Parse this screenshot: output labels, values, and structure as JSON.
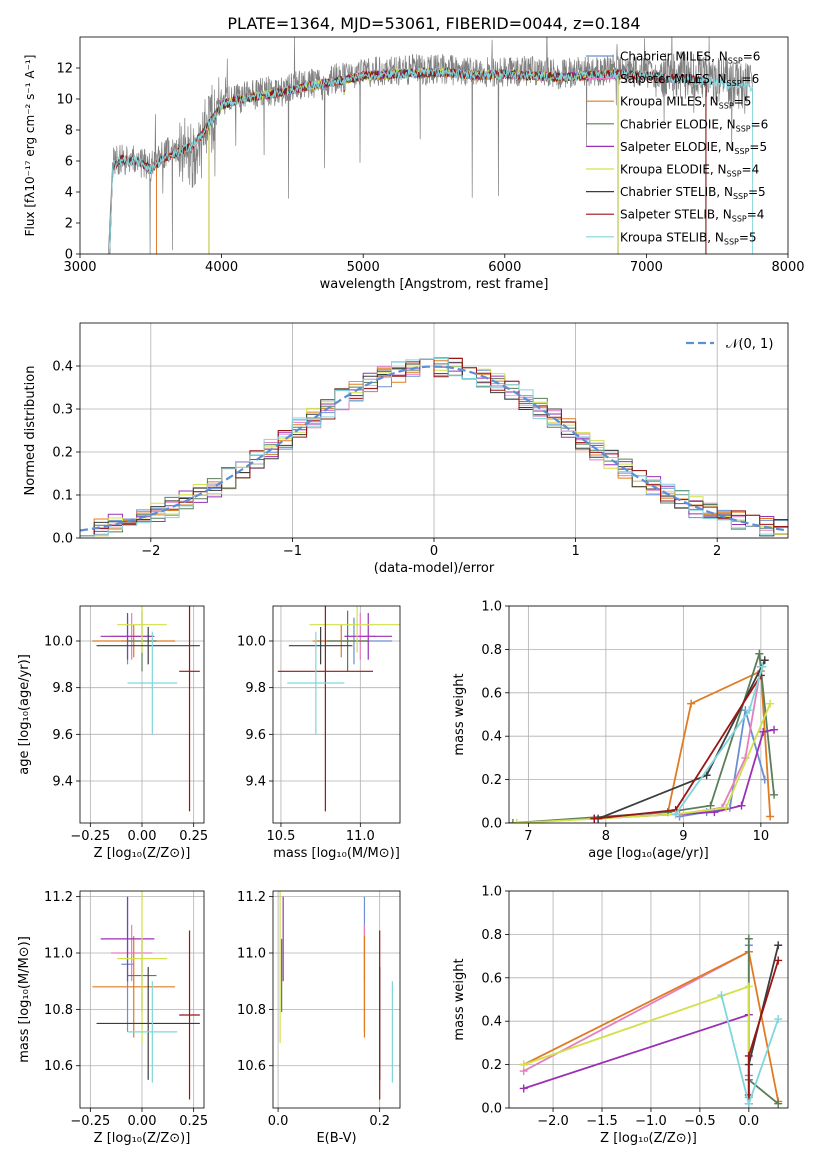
{
  "figure": {
    "title": "PLATE=1364, MJD=53061, FIBERID=0044, z=0.184"
  },
  "colors": {
    "Chabrier MILES": "#6c8fd3",
    "Salpeter MILES": "#e57ec0",
    "Kroupa MILES": "#e07b21",
    "Chabrier ELODIE": "#5a7e5a",
    "Salpeter ELODIE": "#9b30b5",
    "Kroupa ELODIE": "#d2e04a",
    "Chabrier STELIB": "#3c3c3c",
    "Salpeter STELIB": "#9c1515",
    "Kroupa STELIB": "#7fd6dc",
    "data": "#808080",
    "gaussian": "#5b8fd6"
  },
  "chart_data": [
    {
      "id": "spectrum",
      "type": "line",
      "title": "PLATE=1364, MJD=53061, FIBERID=0044, z=0.184",
      "xlabel": "wavelength [Angstrom, rest frame]",
      "ylabel": "Flux [fλ10⁻¹⁷ erg cm⁻² s⁻¹ A⁻¹]",
      "xlim": [
        3000,
        8000
      ],
      "ylim": [
        0,
        14
      ],
      "xticks": [
        3000,
        4000,
        5000,
        6000,
        7000,
        8000
      ],
      "yticks": [
        0,
        2,
        4,
        6,
        8,
        10,
        12
      ],
      "grid": false,
      "legend_position": "top-right",
      "data_x": [
        3200,
        3230,
        3300,
        3400,
        3500,
        3600,
        3700,
        3800,
        3850,
        3900,
        3950,
        4000,
        4100,
        4200,
        4300,
        4400,
        4500,
        4600,
        4700,
        4800,
        4900,
        5000,
        5200,
        5400,
        5600,
        5800,
        6000,
        6200,
        6400,
        6600,
        6800,
        7000,
        7200,
        7400,
        7600,
        7750
      ],
      "data_y": [
        0,
        5.9,
        6.1,
        6.0,
        5.6,
        6.5,
        6.8,
        6.3,
        7.6,
        8.0,
        9.1,
        9.7,
        10.0,
        10.2,
        10.5,
        10.4,
        10.8,
        11.0,
        10.9,
        11.3,
        11.4,
        11.7,
        11.8,
        11.9,
        11.9,
        11.7,
        11.8,
        11.8,
        11.6,
        11.8,
        11.9,
        11.7,
        11.6,
        11.5,
        11.0,
        10.8
      ],
      "model_x": [
        3200,
        3230,
        3300,
        3400,
        3500,
        3600,
        3700,
        3800,
        3900,
        4000,
        4100,
        4200,
        4400,
        4600,
        4800,
        5000,
        5200,
        5400,
        5600,
        5800,
        6000,
        6200,
        6400,
        6600,
        6800,
        7000,
        7200,
        7400,
        7600,
        7750
      ],
      "model_y": [
        0,
        5.8,
        6.1,
        6.0,
        5.5,
        6.2,
        6.6,
        7.0,
        8.2,
        9.6,
        9.9,
        10.1,
        10.4,
        10.8,
        11.1,
        11.5,
        11.6,
        11.7,
        11.7,
        11.5,
        11.6,
        11.5,
        11.4,
        11.5,
        11.6,
        11.5,
        11.3,
        11.2,
        10.9,
        10.7
      ],
      "series": [
        {
          "name": "Chabrier MILES, N_SSP=6",
          "label": "Chabrier MILES",
          "nssp": "6",
          "x_range": [
            3540,
            6800
          ]
        },
        {
          "name": "Salpeter MILES, N_SSP=6",
          "label": "Salpeter MILES",
          "nssp": "6",
          "x_range": [
            3540,
            7420
          ]
        },
        {
          "name": "Kroupa MILES, N_SSP=5",
          "label": "Kroupa MILES",
          "nssp": "5",
          "x_range": [
            3540,
            7420
          ]
        },
        {
          "name": "Chabrier ELODIE, N_SSP=6",
          "label": "Chabrier ELODIE",
          "nssp": "6",
          "x_range": [
            3910,
            6800
          ]
        },
        {
          "name": "Salpeter ELODIE, N_SSP=5",
          "label": "Salpeter ELODIE",
          "nssp": "5",
          "x_range": [
            3910,
            6800
          ]
        },
        {
          "name": "Kroupa ELODIE, N_SSP=4",
          "label": "Kroupa ELODIE",
          "nssp": "4",
          "x_range": [
            3910,
            6800
          ]
        },
        {
          "name": "Chabrier STELIB, N_SSP=5",
          "label": "Chabrier STELIB",
          "nssp": "5",
          "x_range": [
            3210,
            7420
          ]
        },
        {
          "name": "Salpeter STELIB, N_SSP=4",
          "label": "Salpeter STELIB",
          "nssp": "4",
          "x_range": [
            3210,
            7420
          ]
        },
        {
          "name": "Kroupa STELIB, N_SSP=5",
          "label": "Kroupa STELIB",
          "nssp": "5",
          "x_range": [
            3210,
            7750
          ]
        }
      ]
    },
    {
      "id": "residuals",
      "type": "line",
      "xlabel": "(data-model)/error",
      "ylabel": "Normed distribution",
      "xlim": [
        -2.5,
        2.5
      ],
      "ylim": [
        0,
        0.5
      ],
      "xticks": [
        -2,
        -1,
        0,
        1,
        2
      ],
      "yticks": [
        0.0,
        0.1,
        0.2,
        0.3,
        0.4
      ],
      "grid": true,
      "legend_position": "top-right",
      "gaussian_label": "𝒩(0, 1)",
      "bin_width": 0.1
    },
    {
      "id": "age_vs_Z",
      "type": "scatter",
      "xlabel": "Z [log₁₀(Z/Z⊙)]",
      "ylabel": "age  [log₁₀(age/yr)]",
      "xlim": [
        -0.3,
        0.3
      ],
      "ylim": [
        9.22,
        10.15
      ],
      "xticks": [
        -0.25,
        0.0,
        0.25
      ],
      "yticks": [
        9.4,
        9.6,
        9.8,
        10.0
      ],
      "grid": true
    },
    {
      "id": "age_vs_mass",
      "type": "scatter",
      "xlabel": "mass [log₁₀(M/M⊙)]",
      "xlim": [
        10.45,
        11.25
      ],
      "ylim": [
        9.22,
        10.15
      ],
      "xticks": [
        10.5,
        11.0
      ],
      "yticks": [
        9.4,
        9.6,
        9.8,
        10.0
      ],
      "grid": true
    },
    {
      "id": "weight_vs_age",
      "type": "line",
      "xlabel": "age  [log₁₀(age/yr)]",
      "ylabel": "mass weight",
      "xlim": [
        6.75,
        10.35
      ],
      "ylim": [
        0,
        1.0
      ],
      "xticks": [
        7,
        8,
        9,
        10
      ],
      "yticks": [
        0.0,
        0.2,
        0.4,
        0.6,
        0.8,
        1.0
      ],
      "grid": true
    },
    {
      "id": "mass_vs_Z",
      "type": "scatter",
      "xlabel": "Z [log₁₀(Z/Z⊙)]",
      "ylabel": "mass [log₁₀(M/M⊙)]",
      "xlim": [
        -0.3,
        0.3
      ],
      "ylim": [
        10.45,
        11.22
      ],
      "xticks": [
        -0.25,
        0.0,
        0.25
      ],
      "yticks": [
        10.6,
        10.8,
        11.0,
        11.2
      ],
      "grid": true
    },
    {
      "id": "mass_vs_ebv",
      "type": "scatter",
      "xlabel": "E(B-V)",
      "xlim": [
        -0.01,
        0.24
      ],
      "ylim": [
        10.45,
        11.22
      ],
      "xticks": [
        0.0,
        0.2
      ],
      "yticks": [
        10.6,
        10.8,
        11.0,
        11.2
      ],
      "grid": true
    },
    {
      "id": "weight_vs_Z",
      "type": "line",
      "xlabel": "Z [log₁₀(Z/Z⊙)]",
      "ylabel": "mass weight",
      "xlim": [
        -2.45,
        0.4
      ],
      "ylim": [
        0,
        1.0
      ],
      "xticks": [
        -2.0,
        -1.5,
        -1.0,
        -0.5,
        0.0
      ],
      "yticks": [
        0.0,
        0.2,
        0.4,
        0.6,
        0.8,
        1.0
      ],
      "grid": true
    }
  ],
  "models": [
    {
      "name": "Chabrier MILES",
      "Z": [
        -0.07,
        0.03
      ],
      "age": [
        10.0,
        0.1
      ],
      "mass": [
        10.96,
        0.24
      ],
      "ebv": 0.17,
      "age_weights": [
        [
          8.95,
          0.03
        ],
        [
          9.3,
          0.05
        ],
        [
          9.6,
          0.07
        ],
        [
          9.8,
          0.52
        ],
        [
          10.05,
          0.2
        ]
      ],
      "Z_weights": [
        [
          0.0,
          0.05
        ],
        [
          0.0,
          0.15
        ],
        [
          0.0,
          0.75
        ]
      ]
    },
    {
      "name": "Salpeter MILES",
      "Z": [
        -0.05,
        0.1
      ],
      "age": [
        10.02,
        0.1
      ],
      "mass": [
        11.0,
        0.1
      ],
      "ebv": 0.17,
      "age_weights": [
        [
          8.95,
          0.04
        ],
        [
          9.5,
          0.07
        ],
        [
          9.8,
          0.3
        ],
        [
          10.0,
          0.72
        ]
      ],
      "Z_weights": [
        [
          -2.3,
          0.17
        ],
        [
          0.0,
          0.72
        ]
      ]
    },
    {
      "name": "Kroupa MILES",
      "Z": [
        -0.04,
        0.2
      ],
      "age": [
        10.0,
        0.07
      ],
      "mass": [
        10.88,
        0.18
      ],
      "ebv": 0.17,
      "age_weights": [
        [
          8.8,
          0.05
        ],
        [
          9.1,
          0.55
        ],
        [
          10.0,
          0.7
        ],
        [
          10.12,
          0.03
        ]
      ],
      "Z_weights": [
        [
          -2.3,
          0.2
        ],
        [
          0.0,
          0.72
        ],
        [
          0.3,
          0.03
        ]
      ]
    },
    {
      "name": "Chabrier ELODIE",
      "Z": [
        0.0,
        0.07
      ],
      "age": [
        10.0,
        0.13
      ],
      "mass": [
        10.92,
        0.13
      ],
      "ebv": 0.007,
      "age_weights": [
        [
          6.8,
          0.0
        ],
        [
          8.8,
          0.05
        ],
        [
          9.35,
          0.08
        ],
        [
          9.98,
          0.78
        ],
        [
          10.17,
          0.13
        ]
      ],
      "Z_weights": [
        [
          0.0,
          0.78
        ],
        [
          0.0,
          0.13
        ],
        [
          0.3,
          0.02
        ]
      ]
    },
    {
      "name": "Salpeter ELODIE",
      "Z": [
        -0.07,
        0.13
      ],
      "age": [
        10.02,
        0.1
      ],
      "mass": [
        11.05,
        0.15
      ],
      "ebv": 0.01,
      "age_weights": [
        [
          7.85,
          0.02
        ],
        [
          9.4,
          0.05
        ],
        [
          9.75,
          0.08
        ],
        [
          10.03,
          0.42
        ],
        [
          10.17,
          0.43
        ]
      ],
      "Z_weights": [
        [
          -2.3,
          0.09
        ],
        [
          0.0,
          0.43
        ]
      ]
    },
    {
      "name": "Kroupa ELODIE",
      "Z": [
        0.0,
        0.12
      ],
      "age": [
        10.07,
        0.12
      ],
      "mass": [
        10.98,
        0.3
      ],
      "ebv": 0.004,
      "age_weights": [
        [
          6.85,
          0.0
        ],
        [
          8.9,
          0.04
        ],
        [
          9.55,
          0.07
        ],
        [
          10.12,
          0.55
        ]
      ],
      "Z_weights": [
        [
          -2.3,
          0.2
        ],
        [
          0.0,
          0.56
        ],
        [
          0.0,
          0.06
        ]
      ]
    },
    {
      "name": "Chabrier STELIB",
      "Z": [
        0.03,
        0.25
      ],
      "age": [
        9.98,
        0.08
      ],
      "mass": [
        10.75,
        0.2
      ],
      "ebv": 0.2,
      "age_weights": [
        [
          7.9,
          0.02
        ],
        [
          9.3,
          0.22
        ],
        [
          10.05,
          0.75
        ]
      ],
      "Z_weights": [
        [
          0.0,
          0.02
        ],
        [
          0.0,
          0.2
        ],
        [
          0.3,
          0.75
        ]
      ]
    },
    {
      "name": "Salpeter STELIB",
      "Z": [
        0.23,
        0.05
      ],
      "age": [
        9.87,
        0.6
      ],
      "mass": [
        10.78,
        0.3
      ],
      "ebv": 0.2,
      "age_weights": [
        [
          7.85,
          0.02
        ],
        [
          8.9,
          0.06
        ],
        [
          10.0,
          0.68
        ]
      ],
      "Z_weights": [
        [
          0.0,
          0.06
        ],
        [
          0.0,
          0.24
        ],
        [
          0.3,
          0.68
        ]
      ]
    },
    {
      "name": "Kroupa STELIB",
      "Z": [
        0.05,
        0.12
      ],
      "age": [
        9.82,
        0.22
      ],
      "mass": [
        10.72,
        0.18
      ],
      "ebv": 0.225,
      "age_weights": [
        [
          8.9,
          0.04
        ],
        [
          9.85,
          0.52
        ],
        [
          10.02,
          0.72
        ]
      ],
      "Z_weights": [
        [
          -0.28,
          0.52
        ],
        [
          0.0,
          0.02
        ],
        [
          0.3,
          0.41
        ]
      ]
    }
  ]
}
